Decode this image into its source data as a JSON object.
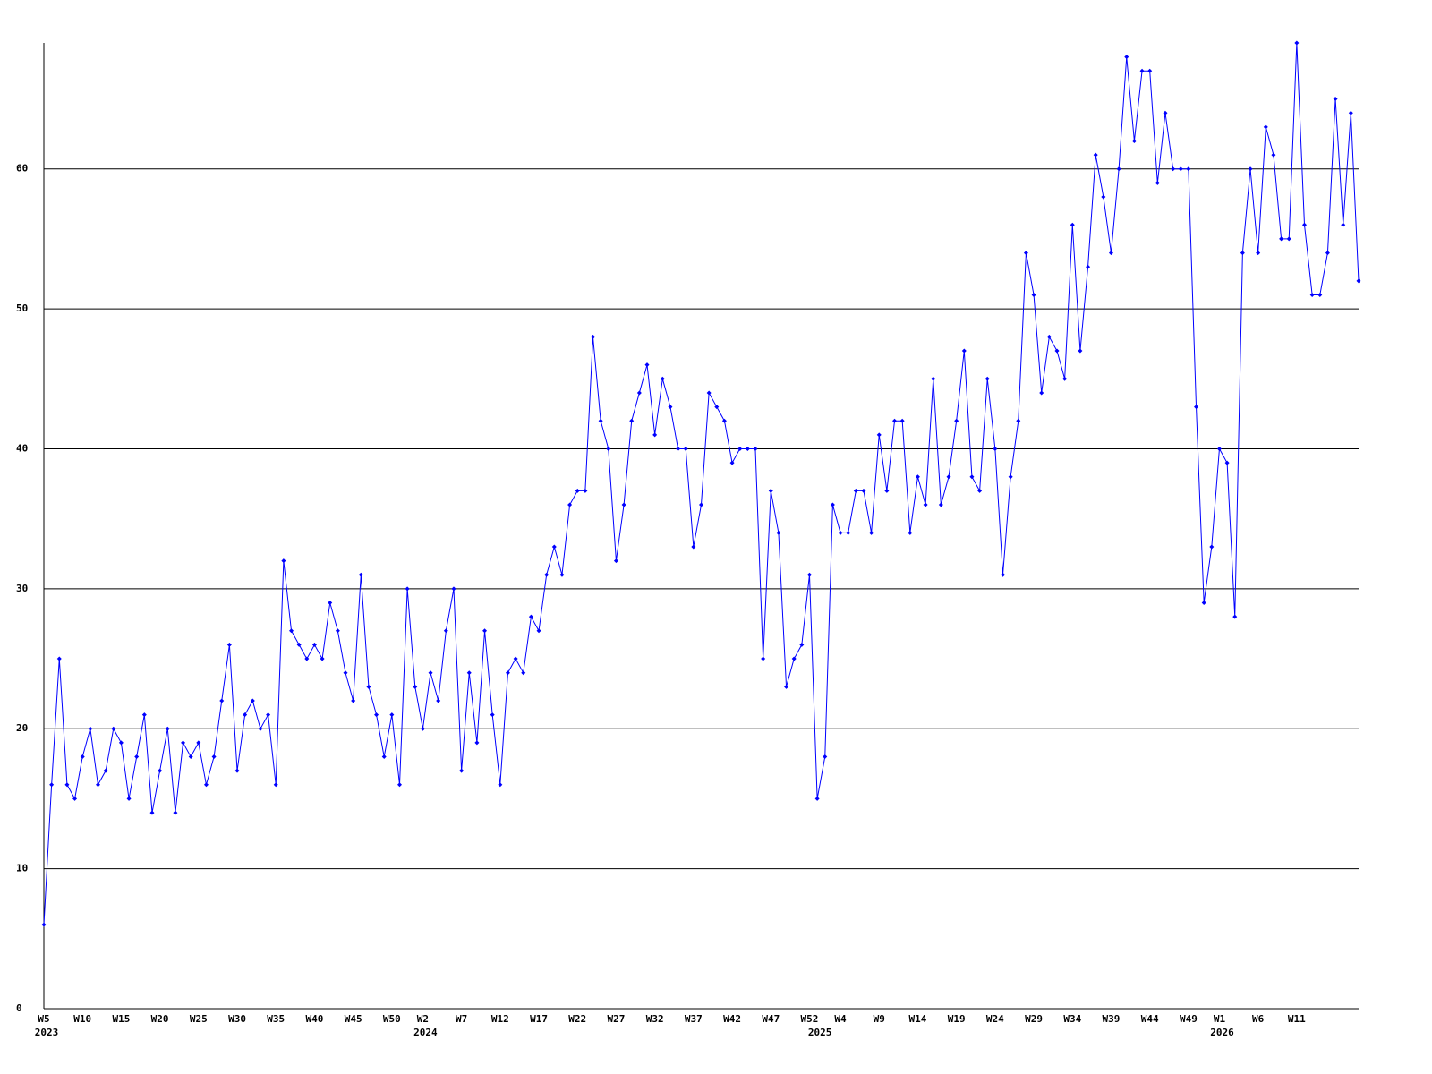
{
  "chart_data": {
    "type": "line",
    "categories": [
      "W5",
      null,
      null,
      null,
      null,
      "W10",
      null,
      null,
      null,
      null,
      "W15",
      null,
      null,
      null,
      null,
      "W20",
      null,
      null,
      null,
      null,
      "W25",
      null,
      null,
      null,
      null,
      "W30",
      null,
      null,
      null,
      null,
      "W35",
      null,
      null,
      null,
      null,
      "W40",
      null,
      null,
      null,
      null,
      "W45",
      null,
      null,
      null,
      null,
      "W50",
      null,
      null,
      null,
      "W2",
      null,
      null,
      null,
      null,
      "W7",
      null,
      null,
      null,
      null,
      "W12",
      null,
      null,
      null,
      null,
      "W17",
      null,
      null,
      null,
      null,
      "W22",
      null,
      null,
      null,
      null,
      "W27",
      null,
      null,
      null,
      null,
      "W32",
      null,
      null,
      null,
      null,
      "W37",
      null,
      null,
      null,
      null,
      "W42",
      null,
      null,
      null,
      null,
      "W47",
      null,
      null,
      null,
      null,
      "W52",
      null,
      null,
      null,
      "W4",
      null,
      null,
      null,
      null,
      "W9",
      null,
      null,
      null,
      null,
      "W14",
      null,
      null,
      null,
      null,
      "W19",
      null,
      null,
      null,
      null,
      "W24",
      null,
      null,
      null,
      null,
      "W29",
      null,
      null,
      null,
      null,
      "W34",
      null,
      null,
      null,
      null,
      "W39",
      null,
      null,
      null,
      null,
      "W44",
      null,
      null,
      null,
      null,
      "W49",
      null,
      null,
      null,
      "W1",
      null,
      null,
      null,
      null,
      "W6",
      null,
      null,
      null,
      null,
      "W11",
      null,
      null,
      null,
      null,
      null,
      null,
      null,
      null
    ],
    "category_years": [
      "2023",
      null,
      null,
      null,
      null,
      null,
      null,
      null,
      null,
      null,
      null,
      null,
      null,
      null,
      null,
      null,
      null,
      null,
      null,
      null,
      null,
      null,
      null,
      null,
      null,
      null,
      null,
      null,
      null,
      null,
      null,
      null,
      null,
      null,
      null,
      null,
      null,
      null,
      null,
      null,
      null,
      null,
      null,
      null,
      null,
      null,
      null,
      null,
      null,
      "2024",
      null,
      null,
      null,
      null,
      null,
      null,
      null,
      null,
      null,
      null,
      null,
      null,
      null,
      null,
      null,
      null,
      null,
      null,
      null,
      null,
      null,
      null,
      null,
      null,
      null,
      null,
      null,
      null,
      null,
      null,
      null,
      null,
      null,
      null,
      null,
      null,
      null,
      null,
      null,
      null,
      null,
      null,
      null,
      null,
      null,
      null,
      null,
      null,
      null,
      null,
      "2025",
      null,
      null,
      null,
      null,
      null,
      null,
      null,
      null,
      null,
      null,
      null,
      null,
      null,
      null,
      null,
      null,
      null,
      null,
      null,
      null,
      null,
      null,
      null,
      null,
      null,
      null,
      null,
      null,
      null,
      null,
      null,
      null,
      null,
      null,
      null,
      null,
      null,
      null,
      null,
      null,
      null,
      null,
      null,
      null,
      null,
      null,
      null,
      null,
      null,
      null,
      null,
      "2026",
      null,
      null,
      null,
      null,
      null,
      null,
      null,
      null,
      null,
      null,
      null,
      null,
      null,
      null,
      null,
      null,
      null,
      null
    ],
    "values": [
      6,
      16,
      25,
      16,
      15,
      18,
      20,
      16,
      17,
      20,
      19,
      15,
      18,
      21,
      14,
      17,
      20,
      14,
      19,
      18,
      19,
      16,
      18,
      22,
      26,
      17,
      21,
      22,
      20,
      21,
      16,
      32,
      27,
      26,
      25,
      26,
      25,
      29,
      27,
      24,
      22,
      31,
      23,
      21,
      18,
      21,
      16,
      30,
      23,
      20,
      24,
      22,
      27,
      30,
      17,
      24,
      19,
      27,
      21,
      16,
      24,
      25,
      24,
      28,
      27,
      31,
      33,
      31,
      36,
      37,
      37,
      48,
      42,
      40,
      32,
      36,
      42,
      44,
      46,
      41,
      45,
      43,
      40,
      40,
      33,
      36,
      44,
      43,
      42,
      39,
      40,
      40,
      40,
      25,
      37,
      34,
      23,
      25,
      26,
      31,
      15,
      18,
      36,
      34,
      34,
      37,
      37,
      34,
      41,
      37,
      42,
      42,
      34,
      38,
      36,
      45,
      36,
      38,
      42,
      47,
      38,
      37,
      45,
      40,
      31,
      38,
      42,
      54,
      51,
      44,
      48,
      47,
      45,
      56,
      47,
      53,
      61,
      58,
      54,
      60,
      68,
      62,
      67,
      67,
      59,
      64,
      60,
      60,
      60,
      43,
      29,
      33,
      40,
      39,
      28,
      54,
      60,
      54,
      63,
      61,
      55,
      55,
      69,
      56,
      51,
      51,
      54,
      65,
      56,
      64,
      52
    ],
    "color": "#0000ff",
    "ylim": [
      0,
      69
    ],
    "yticks": [
      0,
      10,
      20,
      30,
      40,
      50,
      60
    ],
    "grid": true
  }
}
